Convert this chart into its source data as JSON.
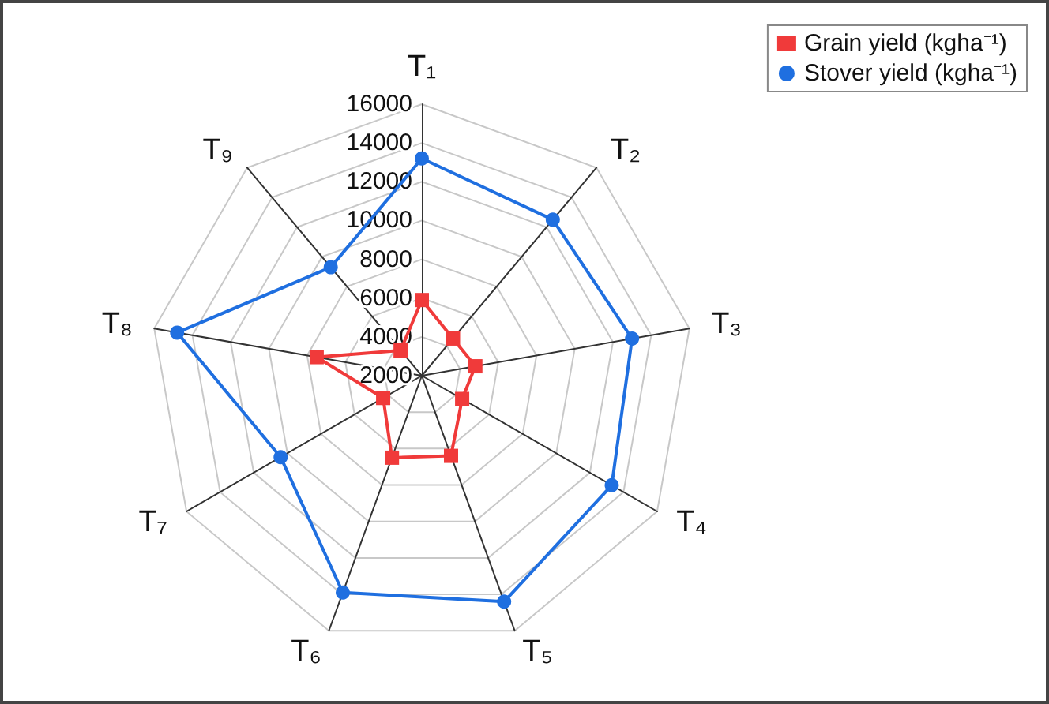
{
  "chart_data": {
    "type": "radar",
    "categories": [
      "T₁",
      "T₂",
      "T₃",
      "T₄",
      "T₅",
      "T₆",
      "T₇",
      "T₈",
      "T₉"
    ],
    "series": [
      {
        "name": "Grain yield (kgha⁻¹)",
        "color": "#f03a3a",
        "marker": "square",
        "values": [
          5900,
          4500,
          4800,
          4400,
          6400,
          6500,
          4300,
          7500,
          3700
        ]
      },
      {
        "name": "Stover yield (kgha⁻¹)",
        "color": "#1f6fe0",
        "marker": "circle",
        "values": [
          13200,
          12500,
          13000,
          13300,
          14400,
          13900,
          10400,
          14800,
          9300
        ]
      }
    ],
    "ylim": [
      2000,
      16000
    ],
    "yticks": [
      2000,
      4000,
      6000,
      8000,
      10000,
      12000,
      14000,
      16000
    ],
    "grid": true,
    "legend": "top right"
  }
}
